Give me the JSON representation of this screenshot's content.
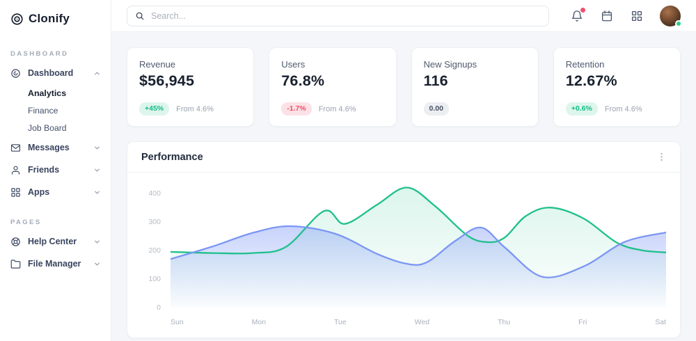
{
  "brand": {
    "name": "Clonify"
  },
  "topbar": {
    "search_placeholder": "Search...",
    "notification_dot_color": "#f0506e",
    "avatar_status_color": "#2dce89"
  },
  "sidebar": {
    "sections": [
      {
        "label": "DASHBOARD"
      },
      {
        "label": "PAGES"
      }
    ],
    "items": {
      "dashboard": "Dashboard",
      "analytics": "Analytics",
      "finance": "Finance",
      "job_board": "Job Board",
      "messages": "Messages",
      "friends": "Friends",
      "apps": "Apps",
      "help_center": "Help Center",
      "file_manager": "File Manager"
    }
  },
  "cards": [
    {
      "title": "Revenue",
      "value": "$56,945",
      "badge": "+45%",
      "trend": "up",
      "note": "From 4.6%"
    },
    {
      "title": "Users",
      "value": "76.8%",
      "badge": "-1.7%",
      "trend": "down",
      "note": "From 4.6%"
    },
    {
      "title": "New Signups",
      "value": "116",
      "badge": "0.00",
      "trend": "neutral",
      "note": ""
    },
    {
      "title": "Retention",
      "value": "12.67%",
      "badge": "+0.6%",
      "trend": "up",
      "note": "From 4.6%"
    }
  ],
  "panel": {
    "title": "Performance"
  },
  "chart_data": {
    "type": "area",
    "title": "Performance",
    "categories": [
      "Sun",
      "Mon",
      "Tue",
      "Wed",
      "Thu",
      "Fri",
      "Sat"
    ],
    "ytick_labels": [
      "400",
      "300",
      "200",
      "100",
      "0"
    ],
    "yticks": [
      400,
      300,
      200,
      100,
      0
    ],
    "ylim": [
      0,
      453
    ],
    "xlim_days": [
      0,
      6
    ],
    "grid": false,
    "legend": "none",
    "series": [
      {
        "name": "green-series",
        "color": "#1fc08c",
        "fill_opacity": [
          0.16,
          0.01
        ],
        "x": [
          0,
          0.5,
          1,
          1.4,
          1.86,
          2.11,
          2.5,
          2.86,
          3.2,
          3.6,
          3.85,
          4.05,
          4.3,
          4.6,
          5,
          5.4,
          5.7,
          6
        ],
        "values": [
          195,
          191,
          191,
          213,
          338,
          293,
          360,
          420,
          356,
          251,
          229,
          246,
          320,
          350,
          312,
          228,
          201,
          193
        ]
      },
      {
        "name": "blue-series",
        "color": "#7b96f4",
        "fill_opacity": [
          0.42,
          0.02
        ],
        "x": [
          0,
          0.5,
          1,
          1.45,
          2,
          2.5,
          2.85,
          3.1,
          3.45,
          3.76,
          4.05,
          4.5,
          5,
          5.5,
          6
        ],
        "values": [
          170,
          213,
          262,
          285,
          258,
          188,
          154,
          158,
          234,
          280,
          210,
          108,
          144,
          230,
          263
        ]
      }
    ]
  }
}
